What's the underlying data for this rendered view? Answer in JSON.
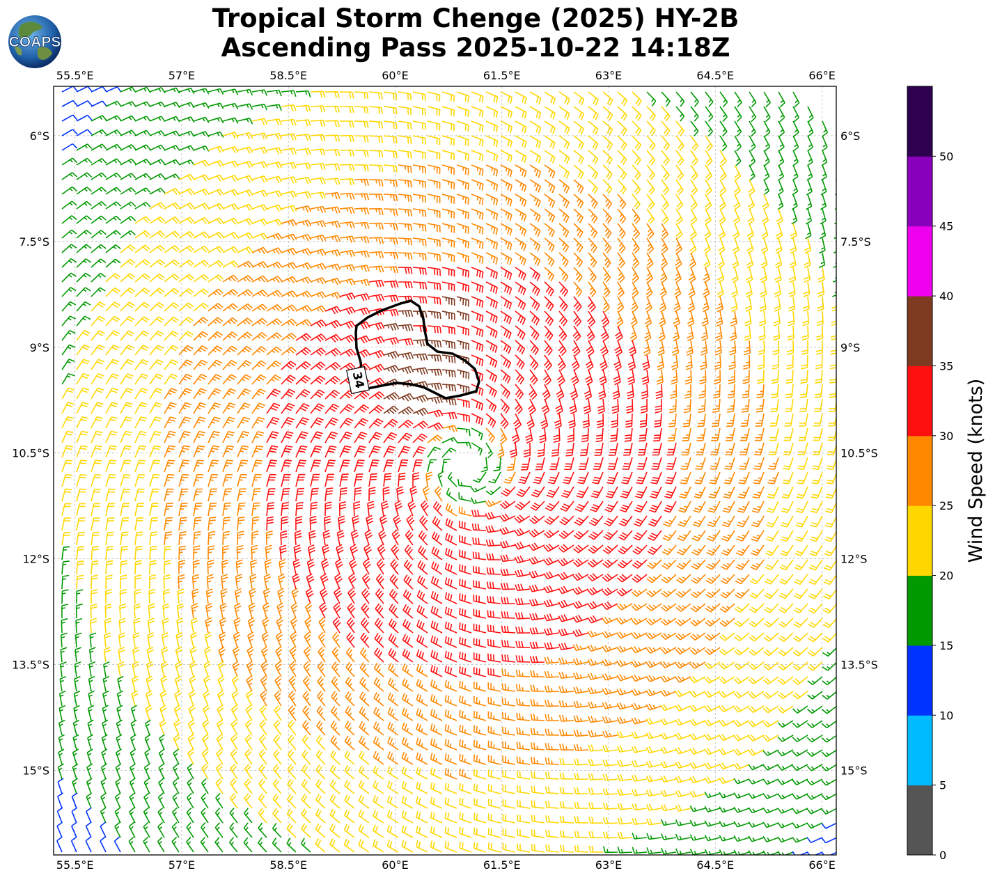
{
  "title": {
    "line1": "Tropical Storm Chenge (2025) HY-2B",
    "line2": "Ascending Pass 2025-10-22 14:18Z"
  },
  "logo": {
    "text": "COAPS",
    "icon": "earth-globe-icon"
  },
  "map": {
    "lon_range": [
      55.2,
      66.2
    ],
    "lat_range": [
      -16.2,
      -5.3
    ],
    "lon_ticks": [
      "55.5°E",
      "57°E",
      "58.5°E",
      "60°E",
      "61.5°E",
      "63°E",
      "64.5°E",
      "66°E"
    ],
    "lat_ticks": [
      "6°S",
      "7.5°S",
      "9°S",
      "10.5°S",
      "12°S",
      "13.5°S",
      "15°S"
    ],
    "grid": true,
    "storm_center": {
      "lon": 61.0,
      "lat": -10.7
    },
    "contour_label": "34"
  },
  "colorbar": {
    "label": "Wind Speed (knots)",
    "ticks": [
      "0",
      "5",
      "10",
      "15",
      "20",
      "25",
      "30",
      "35",
      "40",
      "45",
      "50"
    ],
    "colors": [
      "#555555",
      "#00bbff",
      "#0033ff",
      "#009900",
      "#ffd700",
      "#ff8800",
      "#ff1010",
      "#7f3b22",
      "#ee00ee",
      "#8800bb",
      "#2d0050"
    ]
  }
}
